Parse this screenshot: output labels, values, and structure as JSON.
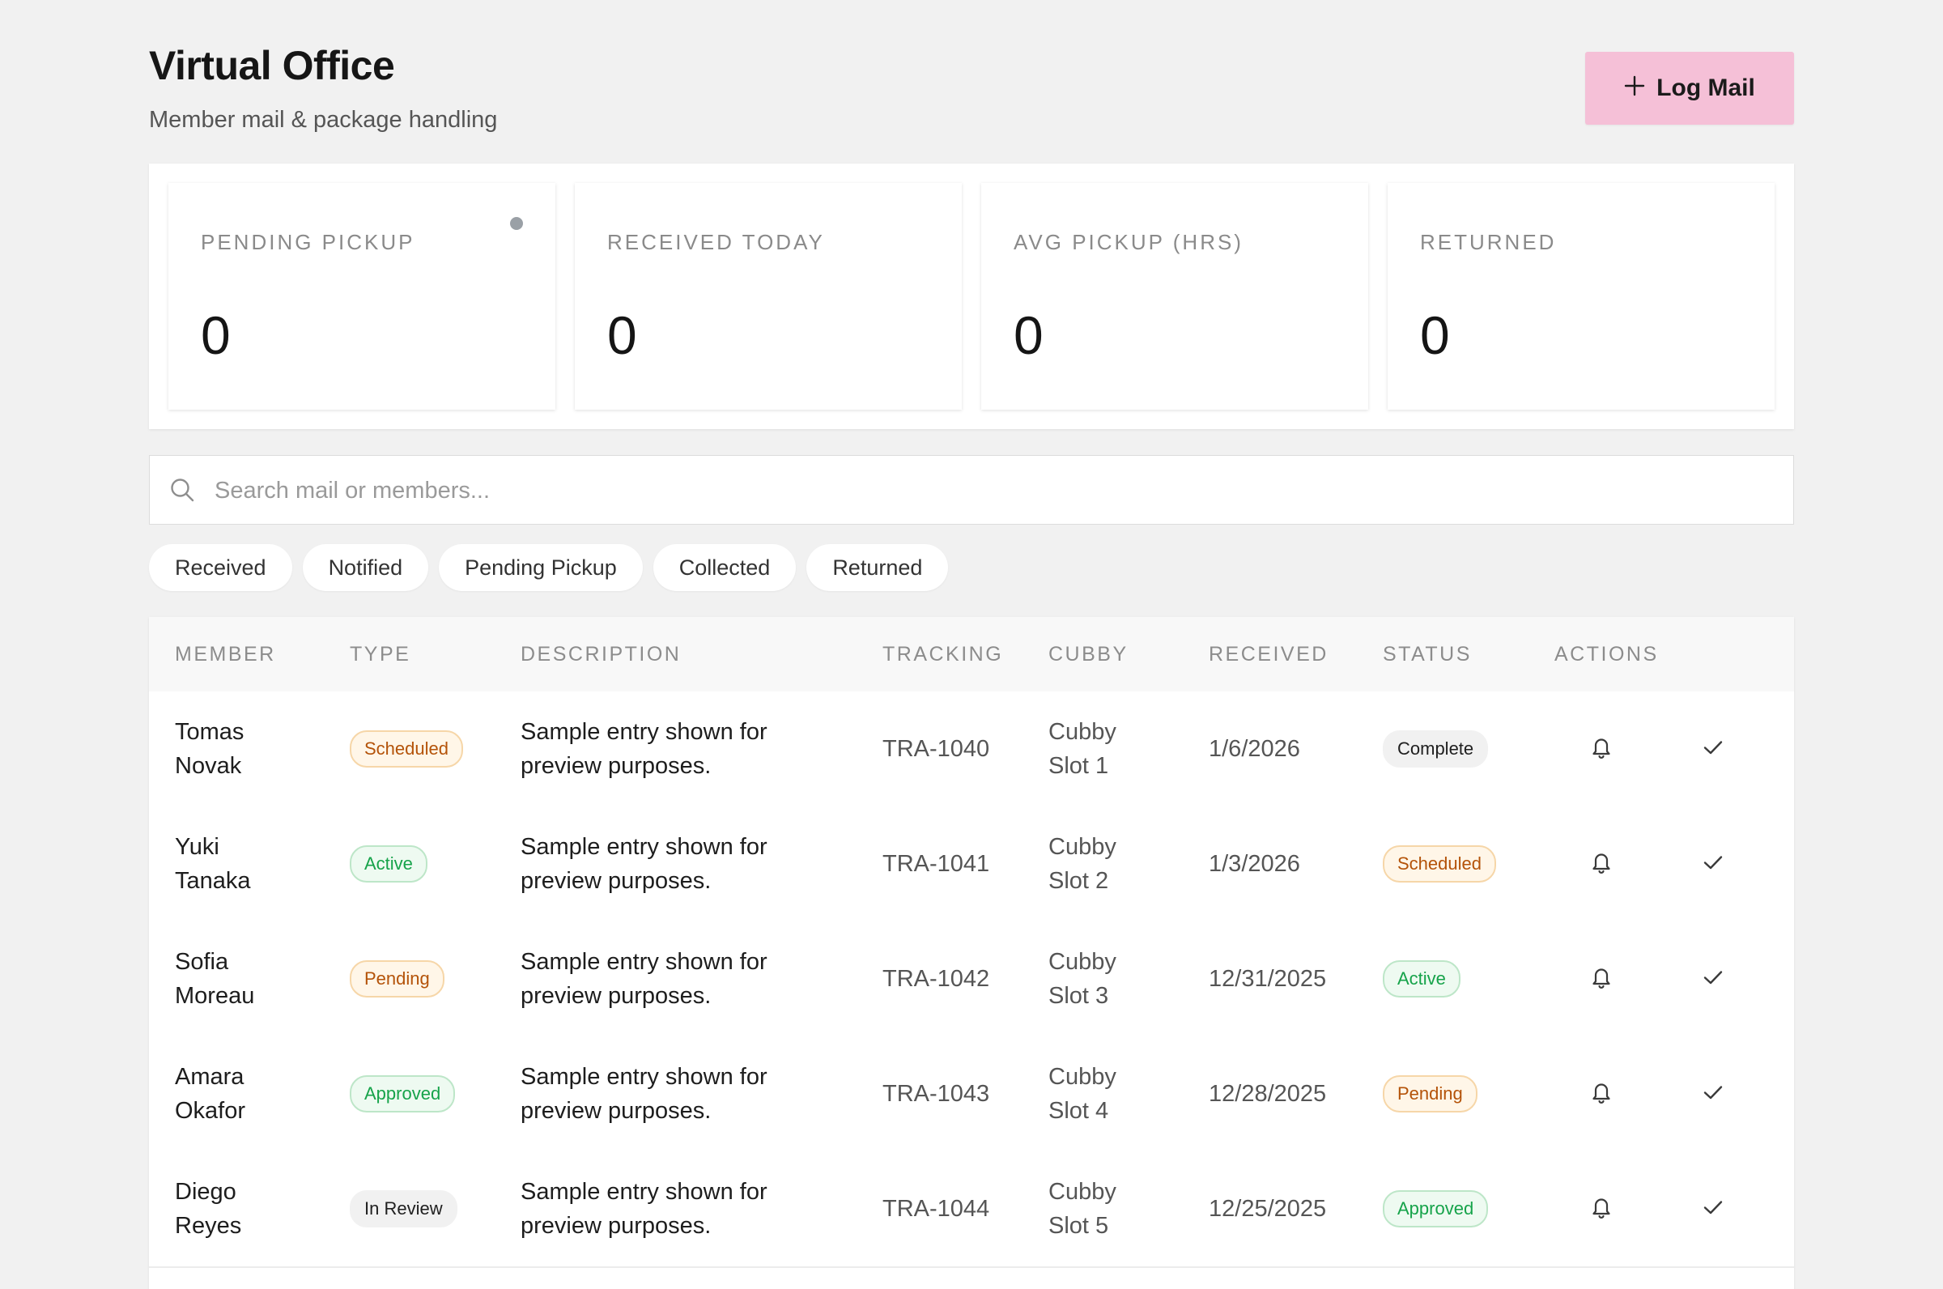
{
  "header": {
    "title": "Virtual Office",
    "subtitle": "Member mail & package handling",
    "log_button_label": "Log Mail",
    "log_button_icon": "plus-icon"
  },
  "stats": [
    {
      "label": "PENDING PICKUP",
      "value": "0",
      "indicator": "dot"
    },
    {
      "label": "RECEIVED TODAY",
      "value": "0"
    },
    {
      "label": "AVG PICKUP (HRS)",
      "value": "0"
    },
    {
      "label": "RETURNED",
      "value": "0"
    }
  ],
  "search": {
    "placeholder": "Search mail or members...",
    "value": "",
    "icon": "search-icon"
  },
  "filters": [
    "Received",
    "Notified",
    "Pending Pickup",
    "Collected",
    "Returned"
  ],
  "table": {
    "columns": [
      "MEMBER",
      "TYPE",
      "DESCRIPTION",
      "TRACKING",
      "CUBBY",
      "RECEIVED",
      "STATUS",
      "ACTIONS"
    ],
    "rows": [
      {
        "member": [
          "Tomas",
          "Novak"
        ],
        "type": "Scheduled",
        "description": [
          "Sample entry shown for",
          "preview purposes."
        ],
        "tracking": "TRA-1040",
        "cubby": [
          "Cubby",
          "Slot 1"
        ],
        "received": "1/6/2026",
        "status": "Complete"
      },
      {
        "member": [
          "Yuki",
          "Tanaka"
        ],
        "type": "Active",
        "description": [
          "Sample entry shown for",
          "preview purposes."
        ],
        "tracking": "TRA-1041",
        "cubby": [
          "Cubby",
          "Slot 2"
        ],
        "received": "1/3/2026",
        "status": "Scheduled"
      },
      {
        "member": [
          "Sofia",
          "Moreau"
        ],
        "type": "Pending",
        "description": [
          "Sample entry shown for",
          "preview purposes."
        ],
        "tracking": "TRA-1042",
        "cubby": [
          "Cubby",
          "Slot 3"
        ],
        "received": "12/31/2025",
        "status": "Active"
      },
      {
        "member": [
          "Amara",
          "Okafor"
        ],
        "type": "Approved",
        "description": [
          "Sample entry shown for",
          "preview purposes."
        ],
        "tracking": "TRA-1043",
        "cubby": [
          "Cubby",
          "Slot 4"
        ],
        "received": "12/28/2025",
        "status": "Pending"
      },
      {
        "member": [
          "Diego",
          "Reyes"
        ],
        "type": "In Review",
        "description": [
          "Sample entry shown for",
          "preview purposes."
        ],
        "tracking": "TRA-1044",
        "cubby": [
          "Cubby",
          "Slot 5"
        ],
        "received": "12/25/2025",
        "status": "Approved"
      }
    ],
    "actions": [
      "bell-icon",
      "check-icon"
    ]
  },
  "badge_styles": {
    "Scheduled": {
      "bg": "#fff6e8",
      "border": "#f6d6a8",
      "fg": "#b45309"
    },
    "Pending": {
      "bg": "#fff6e8",
      "border": "#f6d6a8",
      "fg": "#b45309"
    },
    "Active": {
      "bg": "#eefaf1",
      "border": "#bde6c8",
      "fg": "#16a34a"
    },
    "Approved": {
      "bg": "#eefaf1",
      "border": "#bde6c8",
      "fg": "#16a34a"
    },
    "Complete": {
      "bg": "#f1f1f1",
      "border": "#f1f1f1",
      "fg": "#1f1f1f"
    },
    "In Review": {
      "bg": "#f1f1f1",
      "border": "#f1f1f1",
      "fg": "#1f1f1f"
    }
  },
  "colors": {
    "background": "#f1f1f1",
    "accent_button": "#f5c0d7",
    "surface": "#ffffff",
    "muted_text": "#8a8a8a"
  }
}
